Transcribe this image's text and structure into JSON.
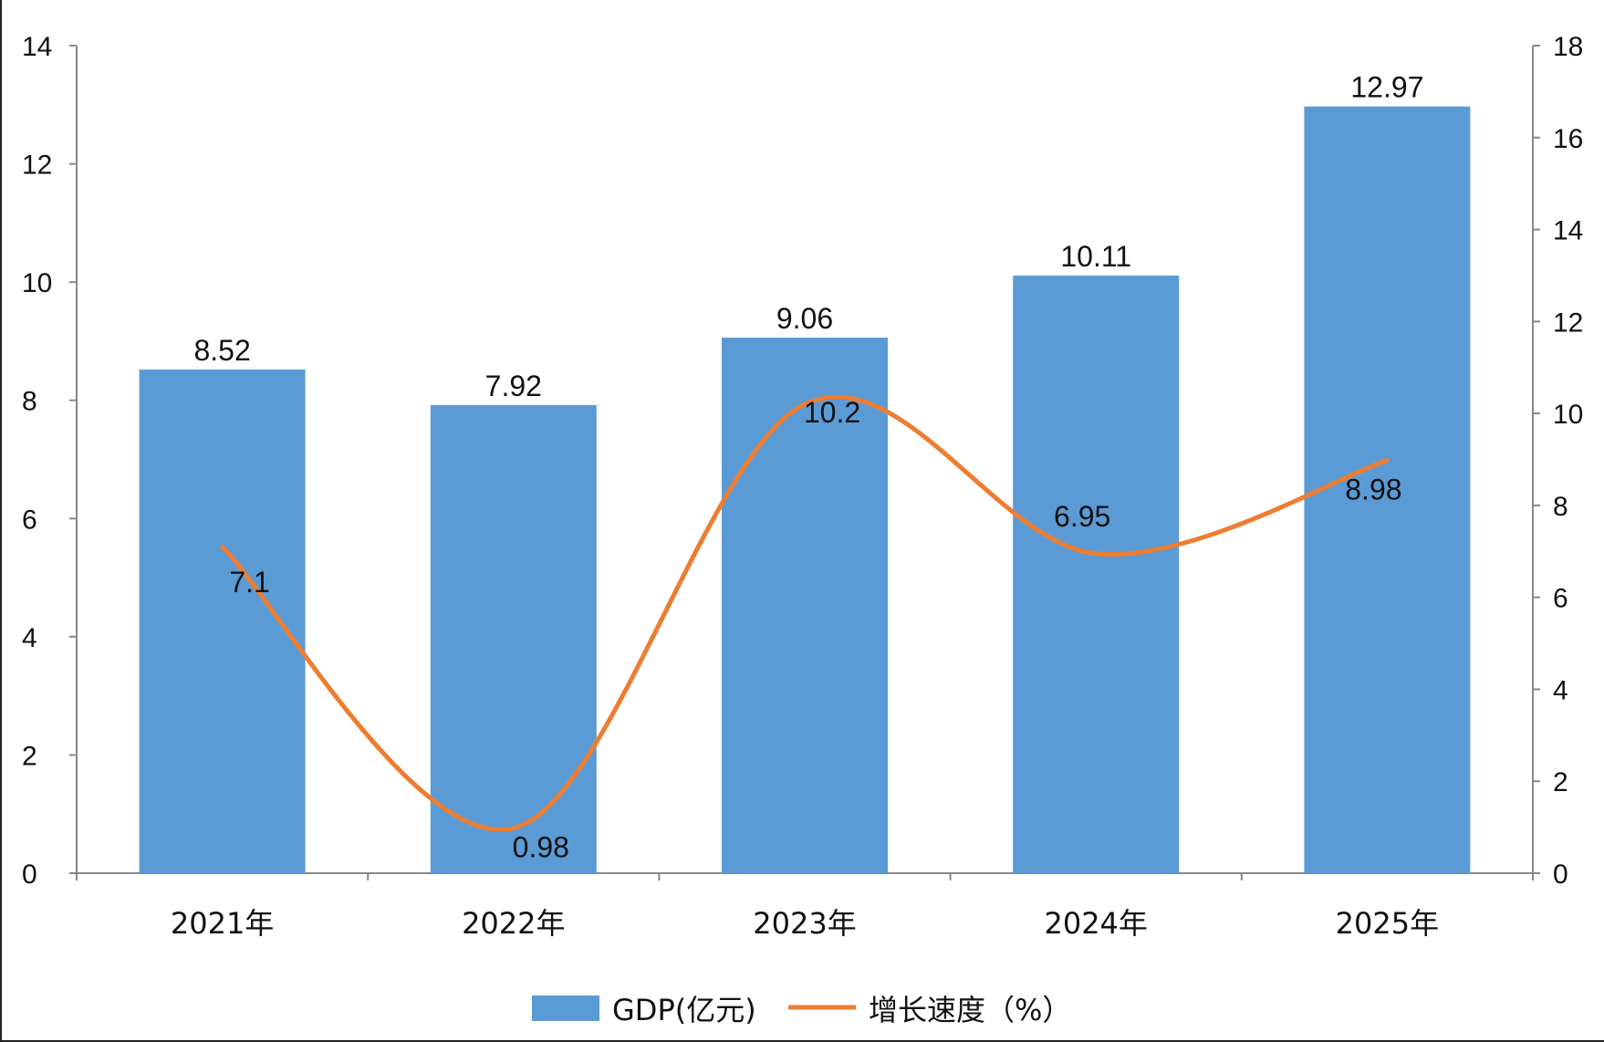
{
  "chart_data": {
    "type": "bar",
    "categories": [
      "2021年",
      "2022年",
      "2023年",
      "2024年",
      "2025年"
    ],
    "series": [
      {
        "name": "GDP(亿元)",
        "type": "bar",
        "axis": "left",
        "values": [
          8.52,
          7.92,
          9.06,
          10.11,
          12.97
        ],
        "labels": [
          "8.52",
          "7.92",
          "9.06",
          "10.11",
          "12.97"
        ],
        "color": "#5b9bd5"
      },
      {
        "name": "增长速度（%）",
        "type": "line",
        "smooth": true,
        "axis": "right",
        "values": [
          7.1,
          0.98,
          10.2,
          6.95,
          8.98
        ],
        "labels": [
          "7.1",
          "0.98",
          "10.2",
          "6.95",
          "8.98"
        ],
        "color": "#ed7d31"
      }
    ],
    "y_left": {
      "lim": [
        0,
        14
      ],
      "ticks": [
        "0",
        "2",
        "4",
        "6",
        "8",
        "10",
        "12",
        "14"
      ]
    },
    "y_right": {
      "lim": [
        0,
        18
      ],
      "ticks": [
        "0",
        "2",
        "4",
        "6",
        "8",
        "10",
        "12",
        "14",
        "16",
        "18"
      ]
    },
    "grid": false,
    "legend": "bottom"
  }
}
